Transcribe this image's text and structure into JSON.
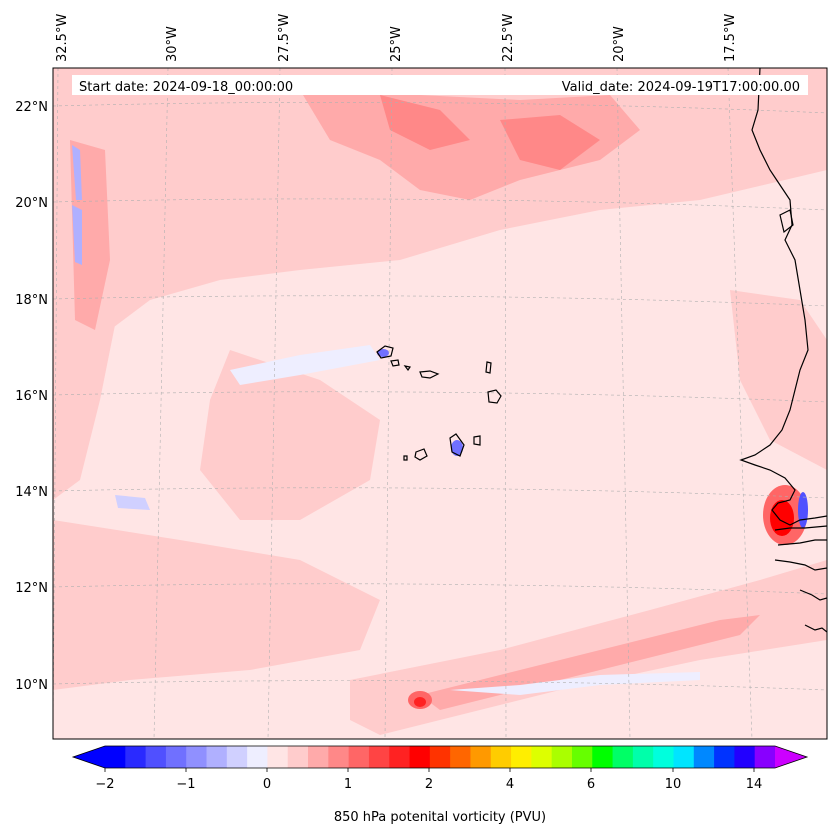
{
  "map": {
    "start_date_label": "Start date: 2024-09-18_00:00:00",
    "valid_date_label": "Valid_date: 2024-09-19T17:00:00.00",
    "lon_labels": [
      "32.5°W",
      "30°W",
      "27.5°W",
      "25°W",
      "22.5°W",
      "20°W",
      "17.5°W"
    ],
    "lat_labels": [
      "22°N",
      "20°N",
      "18°N",
      "16°N",
      "14°N",
      "12°N",
      "10°N"
    ],
    "background_color": "#ffe5e5",
    "coastline_color": "#000000"
  },
  "colorbar": {
    "title": "850 hPa potenital vorticity (PVU)",
    "tick_labels": [
      "−2",
      "−1",
      "0",
      "1",
      "2",
      "4",
      "6",
      "10",
      "14"
    ],
    "colors": [
      "#0000ff",
      "#2a2aff",
      "#5050ff",
      "#7070ff",
      "#9090ff",
      "#b0b0ff",
      "#d0d0ff",
      "#eeeeff",
      "#ffe5e5",
      "#ffcccc",
      "#ffaaaa",
      "#ff8888",
      "#ff6666",
      "#ff4444",
      "#ff2222",
      "#ff0000",
      "#ff3300",
      "#ff6600",
      "#ff9900",
      "#ffcc00",
      "#ffee00",
      "#ddff00",
      "#aaff00",
      "#66ff00",
      "#00ff00",
      "#00ff66",
      "#00ffaa",
      "#00ffdd",
      "#00e5ff",
      "#0088ff",
      "#0033ff",
      "#2200ff",
      "#8800ff"
    ],
    "under_color": "#0000ff",
    "over_color": "#cc00ff"
  }
}
